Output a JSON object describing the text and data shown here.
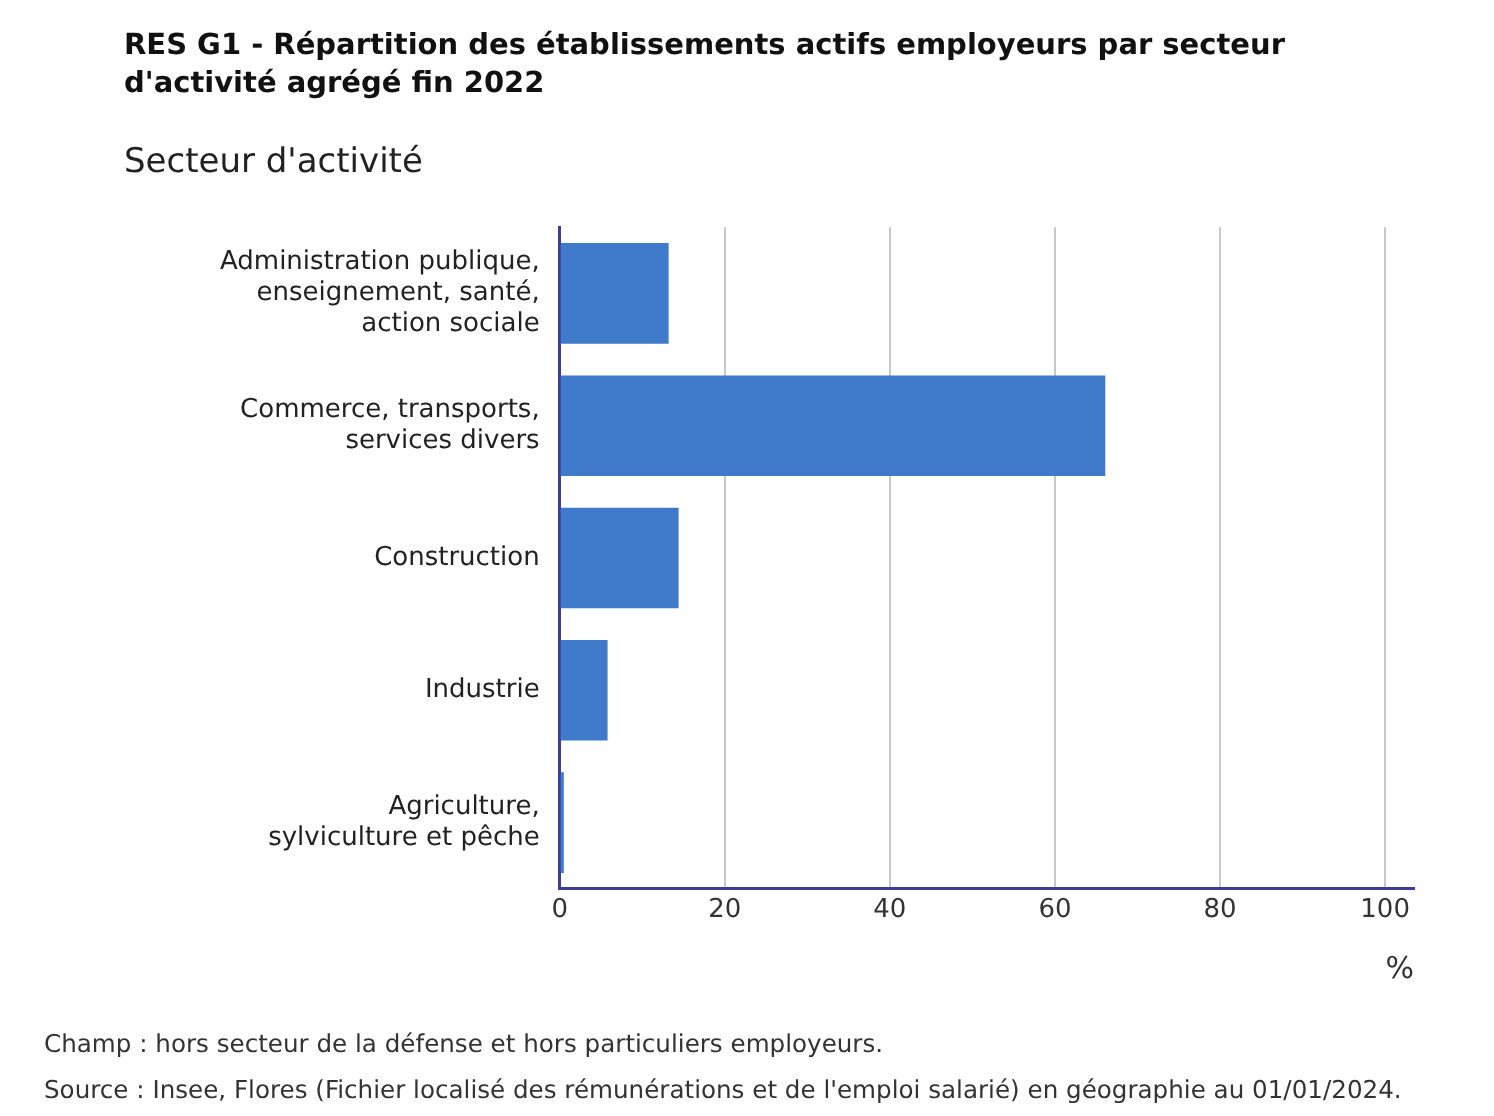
{
  "chart_data": {
    "type": "bar",
    "orientation": "horizontal",
    "title": "RES G1 - Répartition des établissements actifs employeurs par secteur d'activité agrégé fin 2022",
    "ylabel": "Secteur d'activité",
    "xlabel": "%",
    "categories": [
      "Administration publique, enseignement, santé, action sociale",
      "Commerce, transports, services divers",
      "Construction",
      "Industrie",
      "Agriculture, sylviculture et pêche"
    ],
    "values": [
      13.2,
      66.1,
      14.4,
      5.8,
      0.5
    ],
    "color": "#3f7acb",
    "xlim": [
      0,
      103.5
    ],
    "xticks": [
      0,
      20,
      40,
      60,
      80,
      100
    ],
    "grid": "x",
    "legend": false,
    "annotations": [
      "Champ : hors secteur de la défense et hors particuliers employeurs.",
      "Source : Insee, Flores (Fichier localisé des rémunérations et de l'emploi salarié) en géographie au 01/01/2024."
    ]
  }
}
